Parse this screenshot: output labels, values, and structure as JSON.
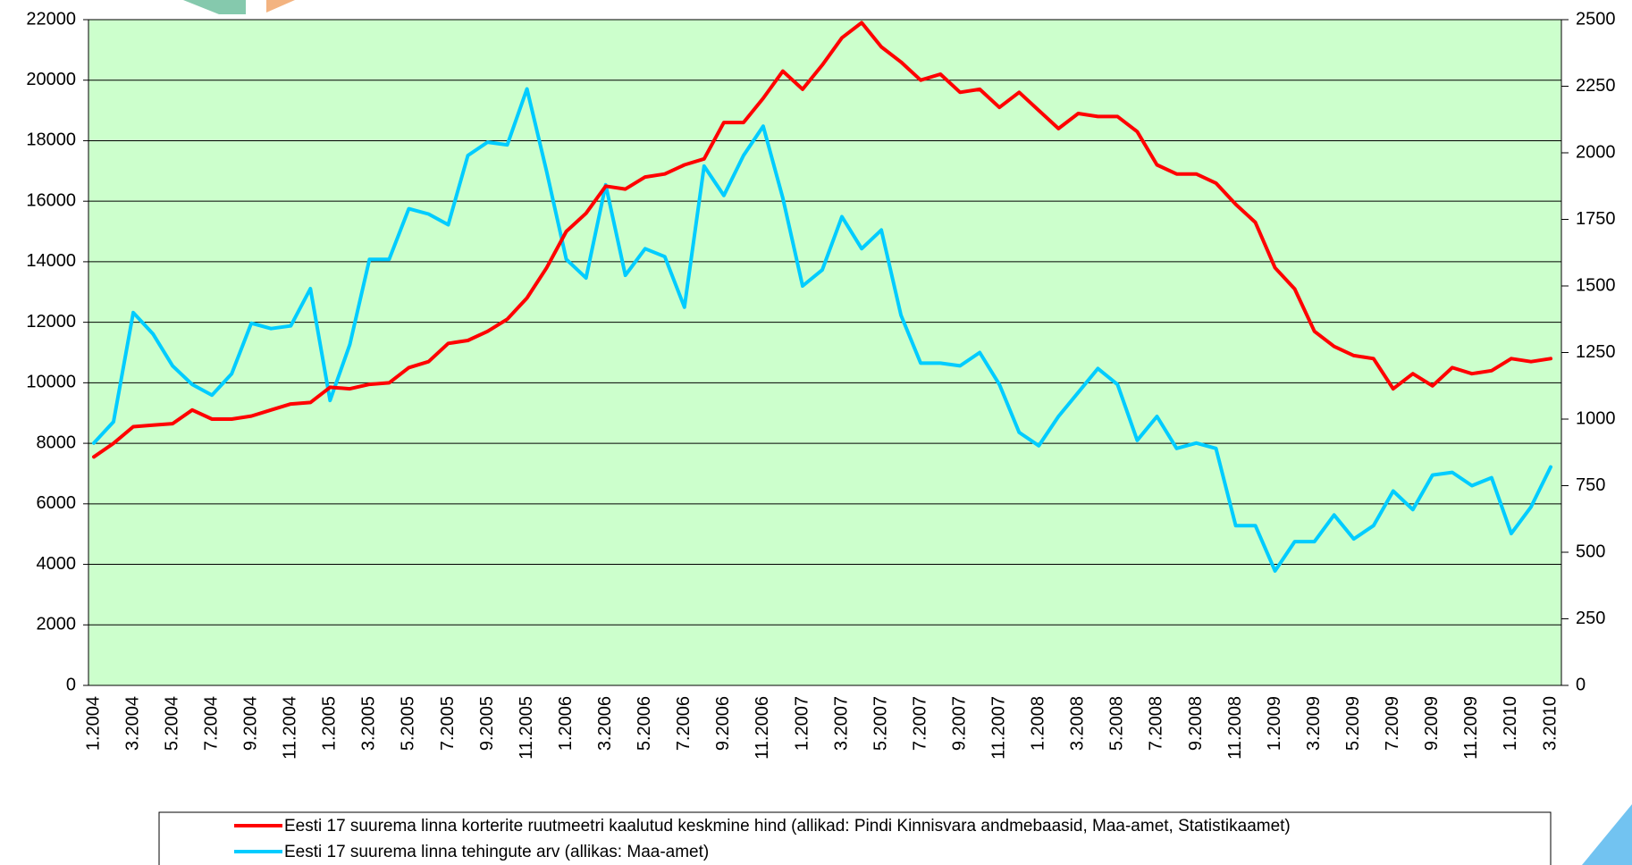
{
  "chart_data": {
    "type": "line",
    "categories": [
      "1.2004",
      null,
      "3.2004",
      null,
      "5.2004",
      null,
      "7.2004",
      null,
      "9.2004",
      null,
      "11.2004",
      null,
      "1.2005",
      null,
      "3.2005",
      null,
      "5.2005",
      null,
      "7.2005",
      null,
      "9.2005",
      null,
      "11.2005",
      null,
      "1.2006",
      null,
      "3.2006",
      null,
      "5.2006",
      null,
      "7.2006",
      null,
      "9.2006",
      null,
      "11.2006",
      null,
      "1.2007",
      null,
      "3.2007",
      null,
      "5.2007",
      null,
      "7.2007",
      null,
      "9.2007",
      null,
      "11.2007",
      null,
      "1.2008",
      null,
      "3.2008",
      null,
      "5.2008",
      null,
      "7.2008",
      null,
      "9.2008",
      null,
      "11.2008",
      null,
      "1.2009",
      null,
      "3.2009",
      null,
      "5.2009",
      null,
      "7.2009",
      null,
      "9.2009",
      null,
      "11.2009",
      null,
      "1.2010",
      null,
      "3.2010"
    ],
    "series": [
      {
        "name": "Eesti 17 suurema linna korterite ruutmeetri kaalutud keskmine hind (allikad: Pindi Kinnisvara andmebaasid, Maa-amet, Statistikaamet)",
        "color": "#ff0000",
        "values": [
          7550,
          8000,
          8550,
          8600,
          8650,
          9100,
          8800,
          8800,
          8900,
          9100,
          9300,
          9350,
          9850,
          9800,
          9950,
          10000,
          10500,
          10700,
          11300,
          11400,
          11700,
          12100,
          12800,
          13800,
          15000,
          15600,
          16500,
          16400,
          16800,
          16900,
          17200,
          17400,
          18600,
          18600,
          19400,
          20300,
          19700,
          20500,
          21400,
          21900,
          21100,
          20600,
          20000,
          20200,
          19600,
          19700,
          19100,
          19600,
          19000,
          18400,
          18900,
          18800,
          18800,
          18300,
          17200,
          16900,
          16900,
          16600,
          15900,
          15300,
          13800,
          13100,
          11700,
          11200,
          10900,
          10800,
          9800,
          10300,
          9900,
          10500,
          10300,
          10400,
          10800,
          10700,
          10800
        ]
      },
      {
        "name": "Eesti 17 suurema linna tehingute arv (allikas: Maa-amet)",
        "color": "#00ccff",
        "axis": "y2",
        "values": [
          910,
          990,
          1400,
          1320,
          1200,
          1130,
          1090,
          1170,
          1360,
          1340,
          1350,
          1490,
          1070,
          1280,
          1600,
          1600,
          1790,
          1770,
          1730,
          1990,
          2040,
          2030,
          2240,
          1930,
          1600,
          1530,
          1880,
          1540,
          1640,
          1610,
          1420,
          1950,
          1840,
          1990,
          2100,
          1830,
          1500,
          1560,
          1760,
          1640,
          1710,
          1390,
          1210,
          1210,
          1200,
          1250,
          1130,
          950,
          900,
          1010,
          1100,
          1190,
          1130,
          920,
          1010,
          890,
          910,
          890,
          600,
          600,
          430,
          540,
          540,
          640,
          550,
          600,
          730,
          660,
          790,
          800,
          750,
          780,
          570,
          670,
          820
        ]
      }
    ],
    "ylim": [
      0,
      22000
    ],
    "yticks": [
      0,
      2000,
      4000,
      6000,
      8000,
      10000,
      12000,
      14000,
      16000,
      18000,
      20000,
      22000
    ],
    "y2lim": [
      0,
      2500
    ],
    "y2ticks": [
      0,
      250,
      500,
      750,
      1000,
      1250,
      1500,
      1750,
      2000,
      2250,
      2500
    ],
    "grid": true,
    "background": "#ccffcc",
    "legend": "bottom"
  }
}
